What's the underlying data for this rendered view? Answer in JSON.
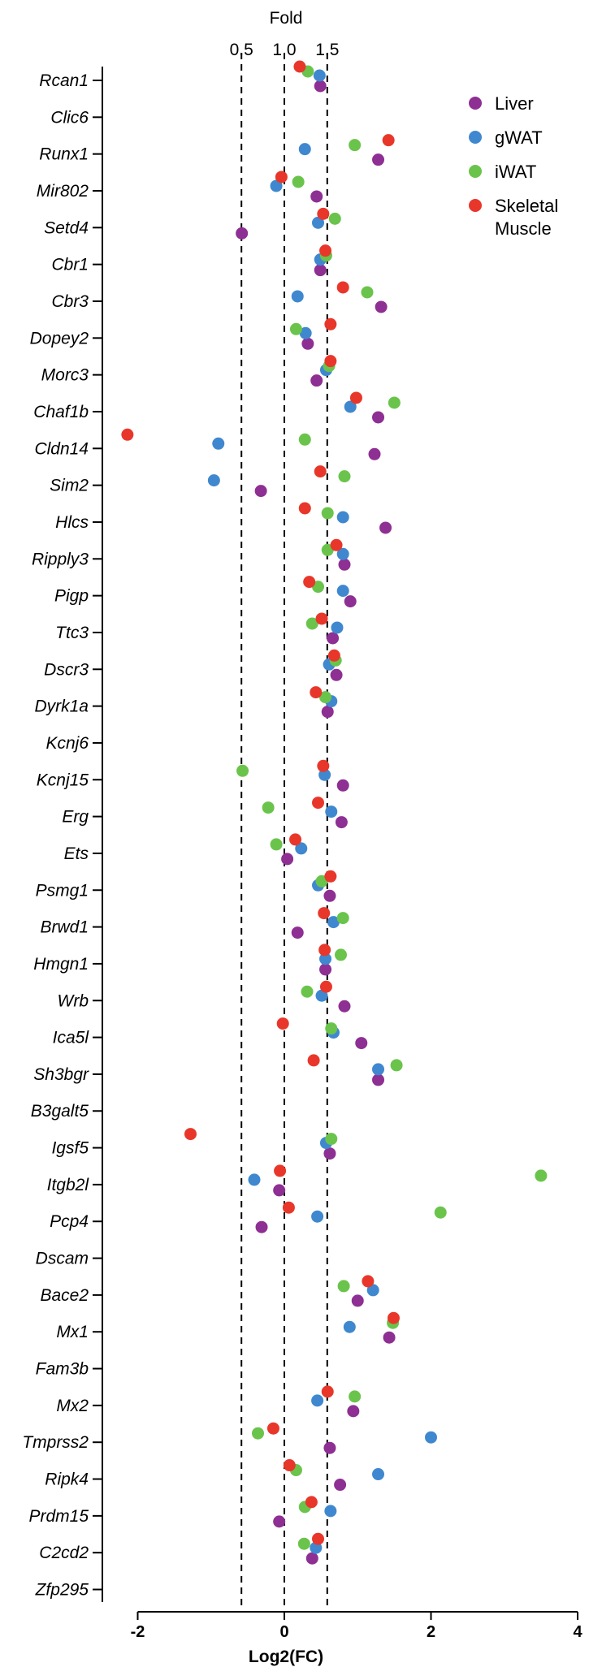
{
  "chart_data": {
    "type": "scatter",
    "title": "Fold",
    "xlabel": "Log2(FC)",
    "xlim": [
      -2.5,
      4
    ],
    "xticks": [
      -2,
      0,
      2,
      4
    ],
    "top_axis_label": "Fold",
    "top_ticks": [
      {
        "label": "0.5",
        "x": -0.585
      },
      {
        "label": "1.0",
        "x": 0
      },
      {
        "label": "1.5",
        "x": 0.585
      }
    ],
    "reference_lines": [
      -0.585,
      0,
      0.585
    ],
    "legend_position": "top-right",
    "categories": [
      "Rcan1",
      "Clic6",
      "Runx1",
      "Mir802",
      "Setd4",
      "Cbr1",
      "Cbr3",
      "Dopey2",
      "Morc3",
      "Chaf1b",
      "Cldn14",
      "Sim2",
      "Hlcs",
      "Ripply3",
      "Pigp",
      "Ttc3",
      "Dscr3",
      "Dyrk1a",
      "Kcnj6",
      "Kcnj15",
      "Erg",
      "Ets",
      "Psmg1",
      "Brwd1",
      "Hmgn1",
      "Wrb",
      "Ica5l",
      "Sh3bgr",
      "B3galt5",
      "Igsf5",
      "Itgb2l",
      "Pcp4",
      "Dscam",
      "Bace2",
      "Mx1",
      "Fam3b",
      "Mx2",
      "Tmprss2",
      "Ripk4",
      "Prdm15",
      "C2cd2",
      "Zfp295"
    ],
    "series": [
      {
        "name": "Liver",
        "color": "#8e2f93",
        "values": [
          0.49,
          null,
          1.28,
          0.44,
          -0.58,
          0.49,
          1.32,
          0.32,
          0.44,
          1.28,
          1.23,
          -0.32,
          1.38,
          0.82,
          0.9,
          0.66,
          0.71,
          0.59,
          null,
          0.8,
          0.78,
          0.04,
          0.62,
          0.18,
          0.56,
          0.82,
          1.05,
          1.28,
          null,
          0.62,
          -0.07,
          -0.31,
          null,
          1.0,
          1.43,
          null,
          0.94,
          0.62,
          0.76,
          -0.07,
          0.38,
          null
        ]
      },
      {
        "name": "gWAT",
        "color": "#3f88cf",
        "values": [
          0.48,
          null,
          0.28,
          -0.11,
          0.46,
          0.49,
          0.18,
          0.29,
          0.57,
          0.9,
          -0.9,
          -0.96,
          0.8,
          0.8,
          0.8,
          0.72,
          0.61,
          0.64,
          null,
          0.55,
          0.64,
          0.23,
          0.46,
          0.67,
          0.56,
          0.51,
          0.67,
          1.28,
          null,
          0.57,
          -0.41,
          0.45,
          null,
          1.21,
          0.89,
          null,
          0.45,
          2.0,
          1.28,
          0.63,
          0.43,
          null
        ]
      },
      {
        "name": "iWAT",
        "color": "#6ac44b",
        "values": [
          0.32,
          null,
          0.96,
          0.19,
          0.69,
          0.57,
          1.13,
          0.16,
          0.61,
          1.5,
          0.28,
          0.82,
          0.59,
          0.59,
          0.46,
          0.38,
          0.7,
          0.56,
          null,
          -0.57,
          -0.22,
          -0.11,
          0.51,
          0.8,
          0.77,
          0.31,
          0.64,
          1.53,
          null,
          0.64,
          3.5,
          2.13,
          null,
          0.81,
          1.48,
          null,
          0.96,
          -0.36,
          0.16,
          0.28,
          0.27,
          null
        ]
      },
      {
        "name": "Skeletal Muscle",
        "color": "#e8372a",
        "values": [
          0.21,
          null,
          1.42,
          -0.04,
          0.53,
          0.56,
          0.8,
          0.63,
          0.63,
          0.98,
          -2.14,
          0.49,
          0.28,
          0.71,
          0.34,
          0.51,
          0.68,
          0.43,
          null,
          0.53,
          0.46,
          0.15,
          0.63,
          0.54,
          0.55,
          0.57,
          -0.02,
          0.4,
          null,
          -1.28,
          -0.06,
          0.06,
          null,
          1.14,
          1.49,
          null,
          0.59,
          -0.15,
          0.07,
          0.37,
          0.46,
          null
        ]
      }
    ]
  }
}
